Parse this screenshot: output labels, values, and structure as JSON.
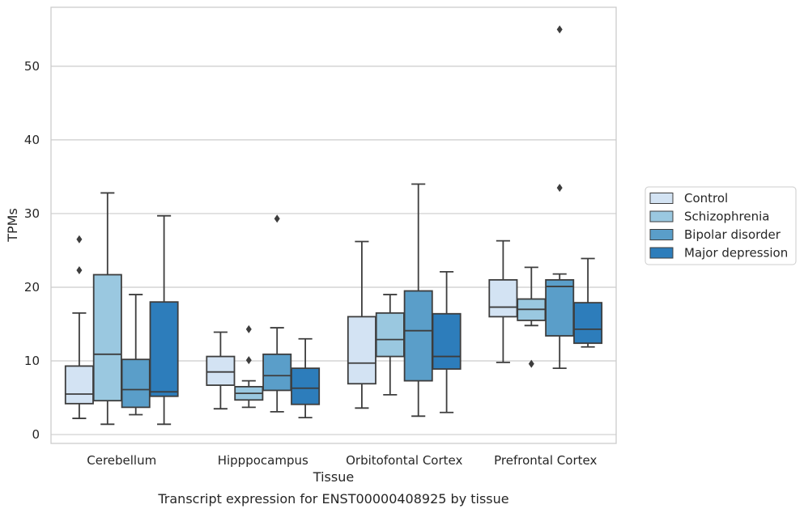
{
  "chart_data": {
    "type": "box",
    "caption": "Transcript expression for ENST00000408925 by tissue",
    "xlabel": "Tissue",
    "ylabel": "TPMs",
    "ylim": [
      -1.2,
      58.0
    ],
    "yticks": [
      0,
      10,
      20,
      30,
      40,
      50
    ],
    "grid": "horizontal",
    "legend_placement": "right",
    "categories": [
      "Cerebellum",
      "Hipppocampus",
      "Orbitofontal Cortex",
      "Prefrontal Cortex"
    ],
    "series": [
      {
        "name": "Control",
        "color": "#d3e3f3",
        "boxes": [
          {
            "min": 2.2,
            "q1": 4.2,
            "median": 5.5,
            "q3": 9.3,
            "max": 16.5,
            "outliers": [
              22.3,
              26.5
            ]
          },
          {
            "min": 3.5,
            "q1": 6.7,
            "median": 8.5,
            "q3": 10.6,
            "max": 13.9,
            "outliers": []
          },
          {
            "min": 3.6,
            "q1": 6.9,
            "median": 9.7,
            "q3": 16.0,
            "max": 26.2,
            "outliers": []
          },
          {
            "min": 9.8,
            "q1": 16.0,
            "median": 17.3,
            "q3": 21.0,
            "max": 26.3,
            "outliers": []
          }
        ]
      },
      {
        "name": "Schizophrenia",
        "color": "#9ac8e0",
        "boxes": [
          {
            "min": 1.4,
            "q1": 4.6,
            "median": 10.9,
            "q3": 21.7,
            "max": 32.8,
            "outliers": []
          },
          {
            "min": 3.7,
            "q1": 4.7,
            "median": 5.6,
            "q3": 6.5,
            "max": 7.3,
            "outliers": [
              10.1,
              14.3
            ]
          },
          {
            "min": 5.4,
            "q1": 10.6,
            "median": 12.9,
            "q3": 16.5,
            "max": 19.0,
            "outliers": []
          },
          {
            "min": 14.8,
            "q1": 15.5,
            "median": 17.0,
            "q3": 18.4,
            "max": 22.7,
            "outliers": [
              9.6
            ]
          }
        ]
      },
      {
        "name": "Bipolar disorder",
        "color": "#5a9ec9",
        "boxes": [
          {
            "min": 2.7,
            "q1": 3.7,
            "median": 6.1,
            "q3": 10.2,
            "max": 19.0,
            "outliers": []
          },
          {
            "min": 3.1,
            "q1": 6.0,
            "median": 8.0,
            "q3": 10.9,
            "max": 14.5,
            "outliers": [
              29.3
            ]
          },
          {
            "min": 2.5,
            "q1": 7.3,
            "median": 14.1,
            "q3": 19.5,
            "max": 34.0,
            "outliers": []
          },
          {
            "min": 9.0,
            "q1": 13.4,
            "median": 20.1,
            "q3": 21.0,
            "max": 21.8,
            "outliers": [
              33.5,
              55.0
            ]
          }
        ]
      },
      {
        "name": "Major depression",
        "color": "#2d7dbb",
        "boxes": [
          {
            "min": 1.4,
            "q1": 5.2,
            "median": 5.8,
            "q3": 18.0,
            "max": 29.7,
            "outliers": []
          },
          {
            "min": 2.3,
            "q1": 4.1,
            "median": 6.3,
            "q3": 9.0,
            "max": 13.0,
            "outliers": []
          },
          {
            "min": 3.0,
            "q1": 8.9,
            "median": 10.6,
            "q3": 16.4,
            "max": 22.1,
            "outliers": []
          },
          {
            "min": 11.9,
            "q1": 12.4,
            "median": 14.3,
            "q3": 17.9,
            "max": 23.9,
            "outliers": []
          }
        ]
      }
    ]
  }
}
